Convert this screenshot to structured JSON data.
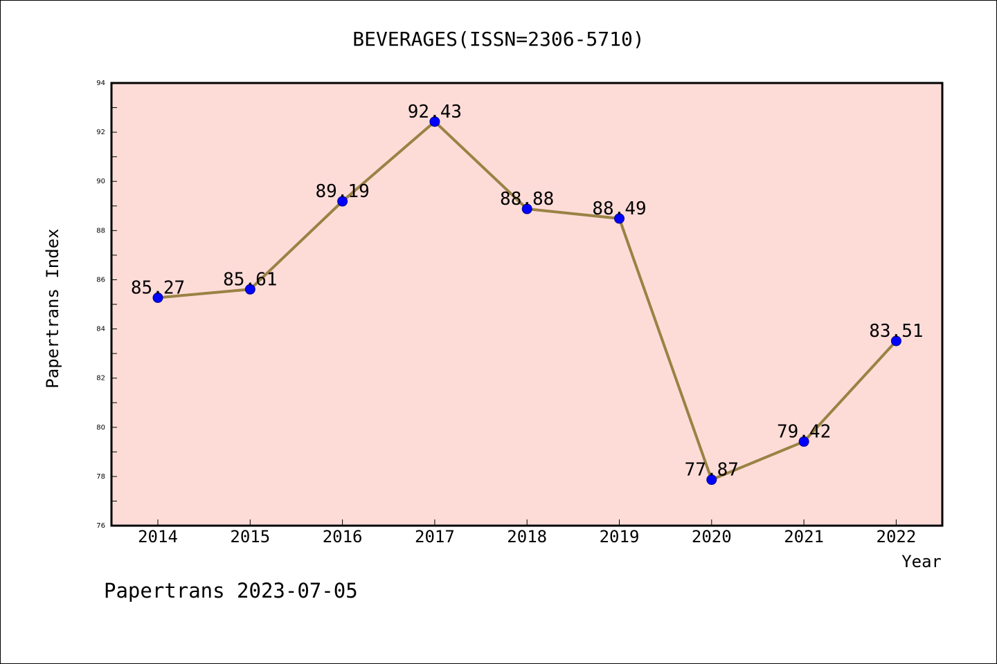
{
  "chart_data": {
    "type": "line",
    "title": "BEVERAGES(ISSN=2306-5710)",
    "xlabel": "Year",
    "ylabel": "Papertrans Index",
    "categories": [
      "2014",
      "2015",
      "2016",
      "2017",
      "2018",
      "2019",
      "2020",
      "2021",
      "2022"
    ],
    "series": [
      {
        "values": [
          85.27,
          85.61,
          89.19,
          92.43,
          88.88,
          88.49,
          77.87,
          79.42,
          83.51
        ]
      }
    ],
    "data_labels": [
      "85.27",
      "85.61",
      "89.19",
      "92.43",
      "88.88",
      "88.49",
      "77.87",
      "79.42",
      "83.51"
    ],
    "ylim": [
      76,
      94
    ],
    "y_ticks": [
      "76",
      "78",
      "80",
      "82",
      "84",
      "86",
      "88",
      "90",
      "92",
      "94"
    ],
    "grid": false,
    "legend": "none",
    "colors": {
      "plot_background": "#fddcd8",
      "line": "#9a8244",
      "marker": "#0000ff",
      "marker_edge": "#00008b"
    }
  },
  "footer": {
    "text": "Papertrans 2023-07-05"
  }
}
